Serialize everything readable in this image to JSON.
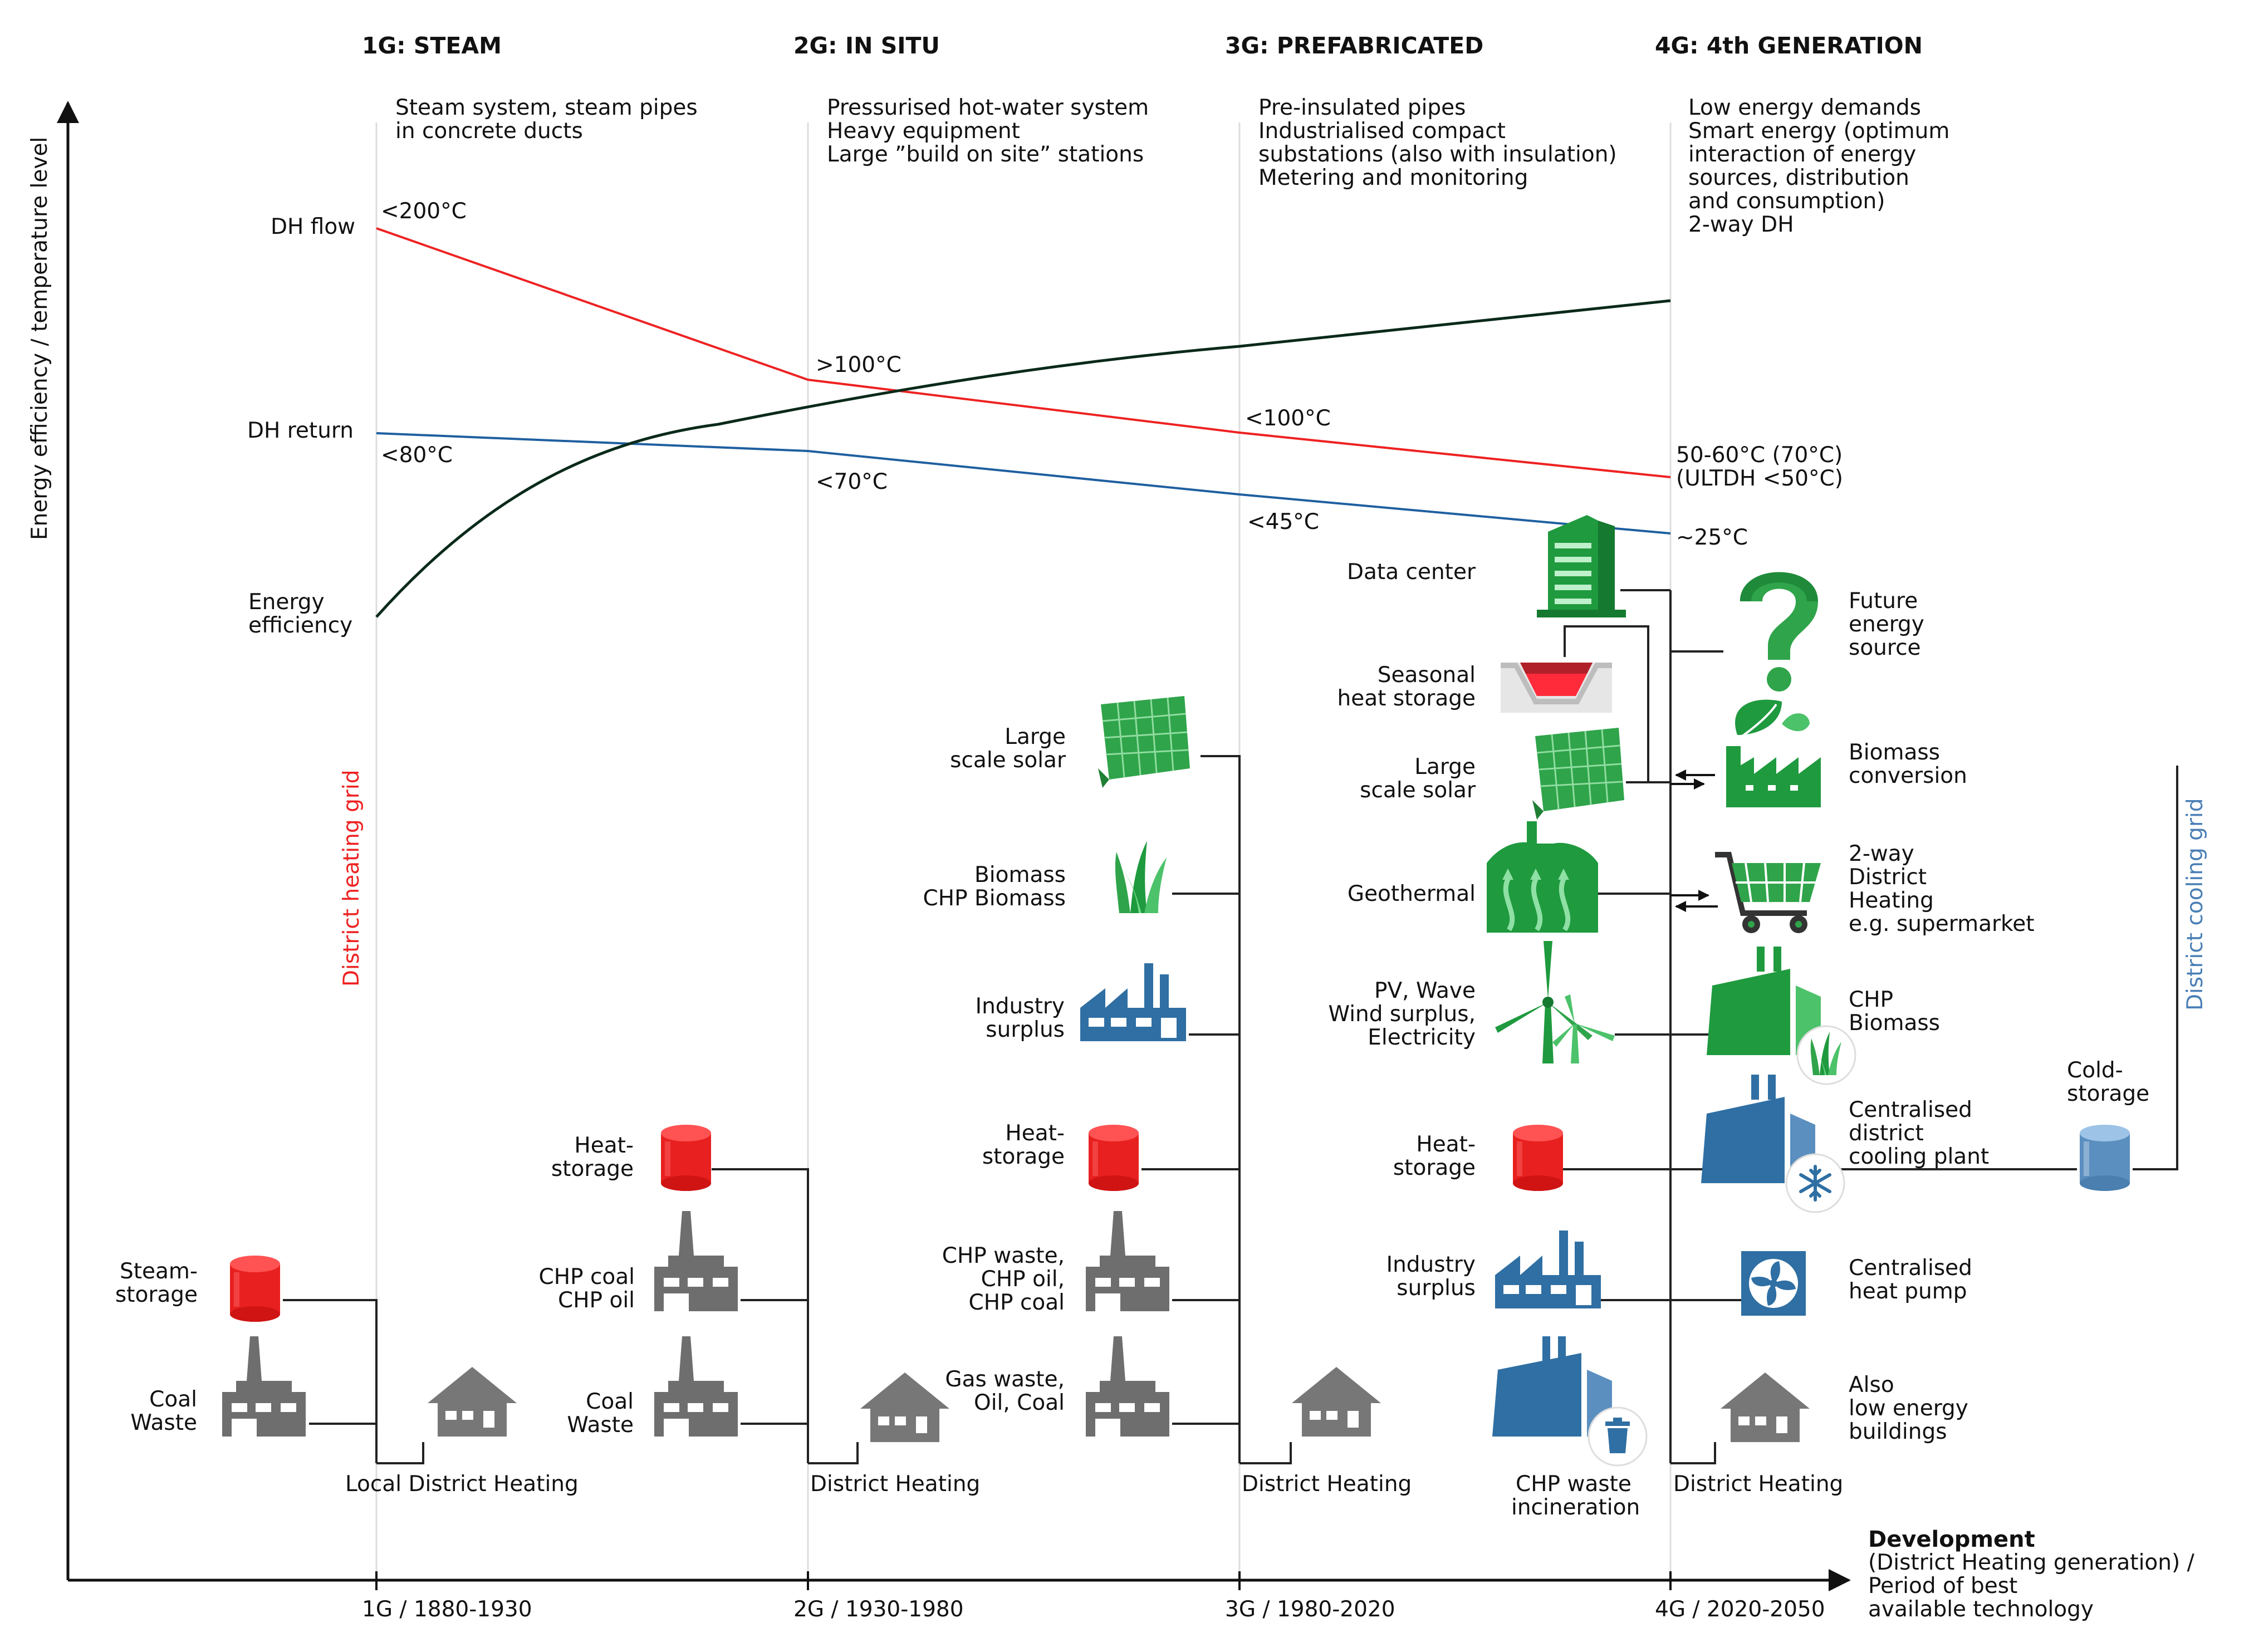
{
  "generations": [
    {
      "title": "1G: STEAM",
      "desc": [
        "Steam system, steam pipes",
        "in concrete ducts"
      ],
      "axis_tick": "1G / 1880-1930"
    },
    {
      "title": "2G: IN SITU",
      "desc": [
        "Pressurised hot-water system",
        "Heavy equipment",
        "Large ”build on site” stations"
      ],
      "axis_tick": "2G / 1930-1980"
    },
    {
      "title": "3G: PREFABRICATED",
      "desc": [
        "Pre-insulated pipes",
        "Industrialised compact",
        "substations (also with insulation)",
        "Metering and monitoring"
      ],
      "axis_tick": "3G / 1980-2020"
    },
    {
      "title": "4G: 4th GENERATION",
      "desc": [
        "Low energy demands",
        "Smart energy (optimum",
        "interaction of energy",
        "sources, distribution",
        "and consumption)",
        "2-way DH"
      ],
      "axis_tick": "4G / 2020-2050"
    }
  ],
  "y_axis_label": "Energy efficiency / temperature level",
  "x_axis_label": {
    "title": "Development",
    "lines": [
      "(District Heating generation) /",
      "Period of best",
      "available technology"
    ]
  },
  "curves": {
    "flow": {
      "label": "DH flow",
      "color": "#ee2222",
      "temps": [
        "<200°C",
        ">100°C",
        "<100°C",
        "50-60°C (70°C)",
        "(ULTDH <50°C)"
      ]
    },
    "return": {
      "label": "DH return",
      "color": "#1f5fa0",
      "temps": [
        "<80°C",
        "<70°C",
        "<45°C",
        "~25°C"
      ]
    },
    "efficiency": {
      "label": [
        "Energy",
        "efficiency"
      ],
      "color": "#0a2a1a"
    }
  },
  "grids": {
    "heating": {
      "label": "District heating grid",
      "color": "#ee2222"
    },
    "cooling": {
      "label": "District cooling grid",
      "color": "#4a7fb5"
    }
  },
  "colors": {
    "storage_red": "#e82020",
    "factory_grey": "#6e6e6e",
    "green": "#1f9a3e",
    "blue": "#2f6fa3",
    "house_grey": "#777777"
  },
  "g1": {
    "sources": [
      {
        "label": [
          "Steam-",
          "storage"
        ],
        "icon": "storage-tank-icon"
      },
      {
        "label": [
          "Coal",
          "Waste"
        ],
        "icon": "factory-icon"
      }
    ],
    "consumer": "Local District Heating"
  },
  "g2": {
    "sources": [
      {
        "label": [
          "Heat-",
          "storage"
        ],
        "icon": "storage-tank-icon"
      },
      {
        "label": [
          "CHP coal",
          "CHP oil"
        ],
        "icon": "factory-icon"
      },
      {
        "label": [
          "Coal",
          "Waste"
        ],
        "icon": "factory-icon"
      }
    ],
    "consumer": "District Heating"
  },
  "g3": {
    "sources": [
      {
        "label": [
          "Large",
          "scale solar"
        ],
        "icon": "solar-panel-icon"
      },
      {
        "label": [
          "Biomass",
          "CHP Biomass"
        ],
        "icon": "grass-icon"
      },
      {
        "label": [
          "Industry",
          "surplus"
        ],
        "icon": "industry-icon"
      },
      {
        "label": [
          "Heat-",
          "storage"
        ],
        "icon": "storage-tank-icon"
      },
      {
        "label": [
          "CHP waste,",
          "CHP oil,",
          "CHP coal"
        ],
        "icon": "factory-icon"
      },
      {
        "label": [
          "Gas waste,",
          "Oil, Coal"
        ],
        "icon": "factory-icon"
      }
    ],
    "consumer": "District Heating"
  },
  "g4": {
    "left_sources": [
      {
        "label": [
          "Data center"
        ],
        "icon": "data-center-icon"
      },
      {
        "label": [
          "Seasonal",
          "heat storage"
        ],
        "icon": "seasonal-storage-icon"
      },
      {
        "label": [
          "Large",
          "scale solar"
        ],
        "icon": "solar-panel-icon"
      },
      {
        "label": [
          "Geothermal"
        ],
        "icon": "geothermal-icon"
      },
      {
        "label": [
          "PV, Wave",
          "Wind surplus,",
          "Electricity"
        ],
        "icon": "wind-turbine-icon"
      },
      {
        "label": [
          "Heat-",
          "storage"
        ],
        "icon": "storage-tank-icon"
      },
      {
        "label": [
          "Industry",
          "surplus"
        ],
        "icon": "industry-icon"
      },
      {
        "label": [
          "CHP waste",
          "incineration"
        ],
        "icon": "incineration-icon"
      }
    ],
    "right_items": [
      {
        "label": [
          "Future",
          "energy",
          "source"
        ],
        "icon": "question-mark-icon"
      },
      {
        "label": [
          "Biomass",
          "conversion"
        ],
        "icon": "biomass-plant-icon"
      },
      {
        "label": [
          "2-way",
          "District",
          "Heating",
          "e.g. supermarket"
        ],
        "icon": "shopping-cart-icon"
      },
      {
        "label": [
          "CHP",
          "Biomass"
        ],
        "icon": "chp-biomass-icon"
      },
      {
        "label": [
          "Centralised",
          "district",
          "cooling plant"
        ],
        "icon": "cooling-plant-icon"
      },
      {
        "label": [
          "Centralised",
          "heat pump"
        ],
        "icon": "heat-pump-icon"
      },
      {
        "label": [
          "Also",
          "low energy",
          "buildings"
        ],
        "icon": "house-icon"
      }
    ],
    "cold_storage": [
      "Cold-",
      "storage"
    ],
    "consumer": "District Heating"
  }
}
